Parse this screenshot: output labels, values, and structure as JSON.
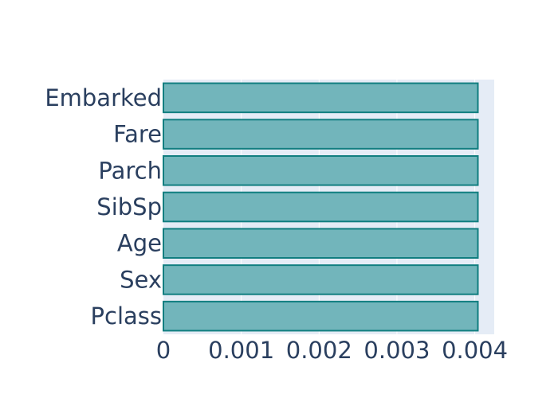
{
  "chart_data": {
    "type": "bar",
    "orientation": "horizontal",
    "categories": [
      "Pclass",
      "Sex",
      "Age",
      "SibSp",
      "Parch",
      "Fare",
      "Embarked"
    ],
    "values": [
      0.00404,
      0.00404,
      0.00404,
      0.00404,
      0.00404,
      0.00404,
      0.00404
    ],
    "xlim": [
      0,
      0.00425
    ],
    "x_ticks": [
      "0",
      "0.001",
      "0.002",
      "0.003",
      "0.004"
    ],
    "x_tick_values": [
      0,
      0.001,
      0.002,
      0.003,
      0.004
    ],
    "title": "",
    "xlabel": "",
    "ylabel": "",
    "grid": true,
    "colors": {
      "bar_fill": "#72b5bb",
      "bar_stroke": "#117e80",
      "plot_bg": "#e5ecf6",
      "grid": "#ffffff",
      "text": "#2a3f5f"
    }
  }
}
